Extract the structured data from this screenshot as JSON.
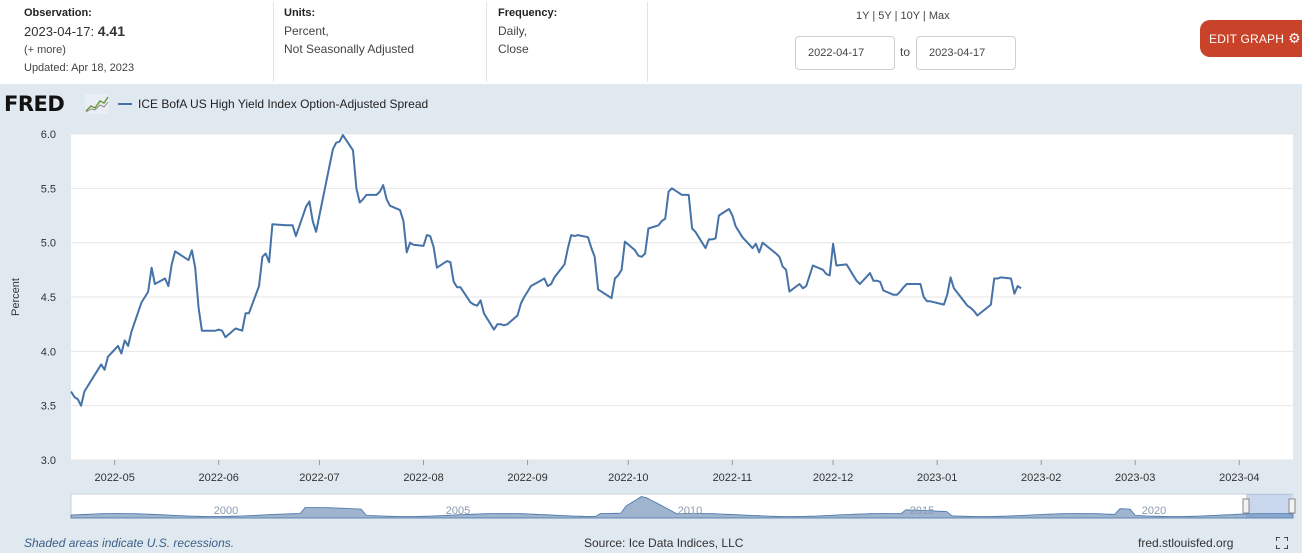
{
  "observation": {
    "label": "Observation:",
    "date": "2023-04-17:",
    "value": "4.41",
    "more": "(+ more)",
    "updated": "Updated: Apr 18, 2023"
  },
  "units": {
    "label": "Units:",
    "line1": "Percent,",
    "line2": "Not Seasonally Adjusted"
  },
  "frequency": {
    "label": "Frequency:",
    "line1": "Daily,",
    "line2": "Close"
  },
  "range_links": [
    "1Y",
    "5Y",
    "10Y",
    "Max"
  ],
  "date_range": {
    "start": "2022-04-17",
    "to": "to",
    "end": "2023-04-17"
  },
  "edit_button": "EDIT GRAPH",
  "logo": "FRED",
  "footer": {
    "recessions": "Shaded areas indicate U.S. recessions.",
    "source": "Source: Ice Data Indices, LLC",
    "site": "fred.stlouisfed.org"
  },
  "colors": {
    "line": "#4572a7",
    "plot_bg": "#ffffff",
    "chart_bg": "#e1e9f0",
    "button": "#c9422a",
    "navigator_fill": "#9fb5cf"
  },
  "icons": {
    "edit": "gear-icon",
    "fullscreen": "fullscreen-icon",
    "logo": "fred-line-graph-icon"
  },
  "chart_data": {
    "type": "line",
    "title": "",
    "xlabel": "",
    "ylabel": "Percent",
    "ylim": [
      3.0,
      6.0
    ],
    "xlim": [
      "2022-04-18",
      "2023-04-17"
    ],
    "grid": true,
    "legend_position": "top-left",
    "yticks": [
      "3.0",
      "3.5",
      "4.0",
      "4.5",
      "5.0",
      "5.5",
      "6.0"
    ],
    "xticks": [
      "2022-05",
      "2022-06",
      "2022-07",
      "2022-08",
      "2022-09",
      "2022-10",
      "2022-11",
      "2022-12",
      "2023-01",
      "2023-02",
      "2023-03",
      "2023-04"
    ],
    "navigator_labels": [
      "2000",
      "2005",
      "2010",
      "2015",
      "2020"
    ],
    "series": [
      {
        "name": "ICE BofA US High Yield Index Option-Adjusted Spread",
        "points": [
          [
            "2022-04-18",
            3.63
          ],
          [
            "2022-04-19",
            3.58
          ],
          [
            "2022-04-20",
            3.56
          ],
          [
            "2022-04-21",
            3.5
          ],
          [
            "2022-04-22",
            3.63
          ],
          [
            "2022-04-25",
            3.78
          ],
          [
            "2022-04-26",
            3.83
          ],
          [
            "2022-04-27",
            3.88
          ],
          [
            "2022-04-28",
            3.83
          ],
          [
            "2022-04-29",
            3.95
          ],
          [
            "2022-05-02",
            4.05
          ],
          [
            "2022-05-03",
            3.98
          ],
          [
            "2022-05-04",
            4.1
          ],
          [
            "2022-05-05",
            4.05
          ],
          [
            "2022-05-06",
            4.18
          ],
          [
            "2022-05-09",
            4.45
          ],
          [
            "2022-05-10",
            4.5
          ],
          [
            "2022-05-11",
            4.55
          ],
          [
            "2022-05-12",
            4.77
          ],
          [
            "2022-05-13",
            4.62
          ],
          [
            "2022-05-16",
            4.67
          ],
          [
            "2022-05-17",
            4.6
          ],
          [
            "2022-05-18",
            4.8
          ],
          [
            "2022-05-19",
            4.92
          ],
          [
            "2022-05-20",
            4.9
          ],
          [
            "2022-05-23",
            4.84
          ],
          [
            "2022-05-24",
            4.93
          ],
          [
            "2022-05-25",
            4.77
          ],
          [
            "2022-05-26",
            4.4
          ],
          [
            "2022-05-27",
            4.19
          ],
          [
            "2022-05-31",
            4.19
          ],
          [
            "2022-06-01",
            4.2
          ],
          [
            "2022-06-02",
            4.19
          ],
          [
            "2022-06-03",
            4.13
          ],
          [
            "2022-06-06",
            4.21
          ],
          [
            "2022-06-07",
            4.2
          ],
          [
            "2022-06-08",
            4.19
          ],
          [
            "2022-06-09",
            4.35
          ],
          [
            "2022-06-10",
            4.35
          ],
          [
            "2022-06-13",
            4.6
          ],
          [
            "2022-06-14",
            4.87
          ],
          [
            "2022-06-15",
            4.9
          ],
          [
            "2022-06-16",
            4.82
          ],
          [
            "2022-06-17",
            5.17
          ],
          [
            "2022-06-21",
            5.16
          ],
          [
            "2022-06-22",
            5.16
          ],
          [
            "2022-06-23",
            5.16
          ],
          [
            "2022-06-24",
            5.06
          ],
          [
            "2022-06-27",
            5.33
          ],
          [
            "2022-06-28",
            5.38
          ],
          [
            "2022-06-29",
            5.2
          ],
          [
            "2022-06-30",
            5.1
          ],
          [
            "2022-07-01",
            5.25
          ],
          [
            "2022-07-05",
            5.86
          ],
          [
            "2022-07-06",
            5.92
          ],
          [
            "2022-07-07",
            5.93
          ],
          [
            "2022-07-08",
            5.99
          ],
          [
            "2022-07-11",
            5.85
          ],
          [
            "2022-07-12",
            5.5
          ],
          [
            "2022-07-13",
            5.37
          ],
          [
            "2022-07-14",
            5.4
          ],
          [
            "2022-07-15",
            5.44
          ],
          [
            "2022-07-18",
            5.44
          ],
          [
            "2022-07-19",
            5.47
          ],
          [
            "2022-07-20",
            5.53
          ],
          [
            "2022-07-21",
            5.4
          ],
          [
            "2022-07-22",
            5.34
          ],
          [
            "2022-07-25",
            5.3
          ],
          [
            "2022-07-26",
            5.2
          ],
          [
            "2022-07-27",
            4.91
          ],
          [
            "2022-07-28",
            5.0
          ],
          [
            "2022-07-29",
            4.98
          ],
          [
            "2022-08-01",
            4.97
          ],
          [
            "2022-08-02",
            5.07
          ],
          [
            "2022-08-03",
            5.06
          ],
          [
            "2022-08-04",
            4.96
          ],
          [
            "2022-08-05",
            4.77
          ],
          [
            "2022-08-08",
            4.83
          ],
          [
            "2022-08-09",
            4.82
          ],
          [
            "2022-08-10",
            4.64
          ],
          [
            "2022-08-11",
            4.59
          ],
          [
            "2022-08-12",
            4.59
          ],
          [
            "2022-08-15",
            4.45
          ],
          [
            "2022-08-16",
            4.43
          ],
          [
            "2022-08-17",
            4.42
          ],
          [
            "2022-08-18",
            4.47
          ],
          [
            "2022-08-19",
            4.35
          ],
          [
            "2022-08-22",
            4.2
          ],
          [
            "2022-08-23",
            4.25
          ],
          [
            "2022-08-24",
            4.25
          ],
          [
            "2022-08-25",
            4.24
          ],
          [
            "2022-08-26",
            4.25
          ],
          [
            "2022-08-29",
            4.33
          ],
          [
            "2022-08-30",
            4.44
          ],
          [
            "2022-08-31",
            4.5
          ],
          [
            "2022-09-01",
            4.55
          ],
          [
            "2022-09-02",
            4.6
          ],
          [
            "2022-09-06",
            4.67
          ],
          [
            "2022-09-07",
            4.6
          ],
          [
            "2022-09-08",
            4.62
          ],
          [
            "2022-09-09",
            4.68
          ],
          [
            "2022-09-12",
            4.8
          ],
          [
            "2022-09-13",
            4.95
          ],
          [
            "2022-09-14",
            5.07
          ],
          [
            "2022-09-15",
            5.06
          ],
          [
            "2022-09-16",
            5.07
          ],
          [
            "2022-09-19",
            5.05
          ],
          [
            "2022-09-20",
            4.95
          ],
          [
            "2022-09-21",
            4.87
          ],
          [
            "2022-09-22",
            4.57
          ],
          [
            "2022-09-23",
            4.55
          ],
          [
            "2022-09-26",
            4.49
          ],
          [
            "2022-09-27",
            4.67
          ],
          [
            "2022-09-28",
            4.7
          ],
          [
            "2022-09-29",
            4.75
          ],
          [
            "2022-09-30",
            5.01
          ],
          [
            "2022-10-03",
            4.93
          ],
          [
            "2022-10-04",
            4.88
          ],
          [
            "2022-10-05",
            4.87
          ],
          [
            "2022-10-06",
            4.9
          ],
          [
            "2022-10-07",
            5.13
          ],
          [
            "2022-10-10",
            5.16
          ],
          [
            "2022-10-11",
            5.2
          ],
          [
            "2022-10-12",
            5.22
          ],
          [
            "2022-10-13",
            5.47
          ],
          [
            "2022-10-14",
            5.5
          ],
          [
            "2022-10-17",
            5.44
          ],
          [
            "2022-10-18",
            5.44
          ],
          [
            "2022-10-19",
            5.44
          ],
          [
            "2022-10-20",
            5.13
          ],
          [
            "2022-10-21",
            5.1
          ],
          [
            "2022-10-24",
            4.95
          ],
          [
            "2022-10-25",
            5.03
          ],
          [
            "2022-10-26",
            5.03
          ],
          [
            "2022-10-27",
            5.04
          ],
          [
            "2022-10-28",
            5.25
          ],
          [
            "2022-10-31",
            5.31
          ],
          [
            "2022-11-01",
            5.25
          ],
          [
            "2022-11-02",
            5.15
          ],
          [
            "2022-11-03",
            5.1
          ],
          [
            "2022-11-04",
            5.05
          ],
          [
            "2022-11-07",
            4.95
          ],
          [
            "2022-11-08",
            4.99
          ],
          [
            "2022-11-09",
            4.91
          ],
          [
            "2022-11-10",
            5.0
          ],
          [
            "2022-11-14",
            4.9
          ],
          [
            "2022-11-15",
            4.87
          ],
          [
            "2022-11-16",
            4.78
          ],
          [
            "2022-11-17",
            4.75
          ],
          [
            "2022-11-18",
            4.55
          ],
          [
            "2022-11-21",
            4.62
          ],
          [
            "2022-11-22",
            4.58
          ],
          [
            "2022-11-23",
            4.6
          ],
          [
            "2022-11-25",
            4.79
          ],
          [
            "2022-11-28",
            4.75
          ],
          [
            "2022-11-29",
            4.71
          ],
          [
            "2022-11-30",
            4.7
          ],
          [
            "2022-12-01",
            4.99
          ],
          [
            "2022-12-02",
            4.79
          ],
          [
            "2022-12-05",
            4.8
          ],
          [
            "2022-12-06",
            4.75
          ],
          [
            "2022-12-07",
            4.7
          ],
          [
            "2022-12-08",
            4.65
          ],
          [
            "2022-12-09",
            4.62
          ],
          [
            "2022-12-12",
            4.72
          ],
          [
            "2022-12-13",
            4.65
          ],
          [
            "2022-12-14",
            4.65
          ],
          [
            "2022-12-15",
            4.64
          ],
          [
            "2022-12-16",
            4.56
          ],
          [
            "2022-12-19",
            4.52
          ],
          [
            "2022-12-20",
            4.52
          ],
          [
            "2022-12-21",
            4.55
          ],
          [
            "2022-12-22",
            4.59
          ],
          [
            "2022-12-23",
            4.62
          ],
          [
            "2022-12-27",
            4.62
          ],
          [
            "2022-12-28",
            4.5
          ],
          [
            "2022-12-29",
            4.46
          ],
          [
            "2022-12-30",
            4.46
          ],
          [
            "2023-01-03",
            4.43
          ],
          [
            "2023-01-04",
            4.52
          ],
          [
            "2023-01-05",
            4.68
          ],
          [
            "2023-01-06",
            4.58
          ],
          [
            "2023-01-09",
            4.46
          ],
          [
            "2023-01-10",
            4.42
          ],
          [
            "2023-01-11",
            4.4
          ],
          [
            "2023-01-12",
            4.37
          ],
          [
            "2023-01-13",
            4.33
          ],
          [
            "2023-01-17",
            4.43
          ],
          [
            "2023-01-18",
            4.67
          ],
          [
            "2023-01-19",
            4.67
          ],
          [
            "2023-01-20",
            4.68
          ],
          [
            "2023-01-23",
            4.67
          ],
          [
            "2023-01-24",
            4.53
          ],
          [
            "2023-01-25",
            4.6
          ],
          [
            "2023-01-26",
            4.58
          ]
        ]
      }
    ]
  }
}
